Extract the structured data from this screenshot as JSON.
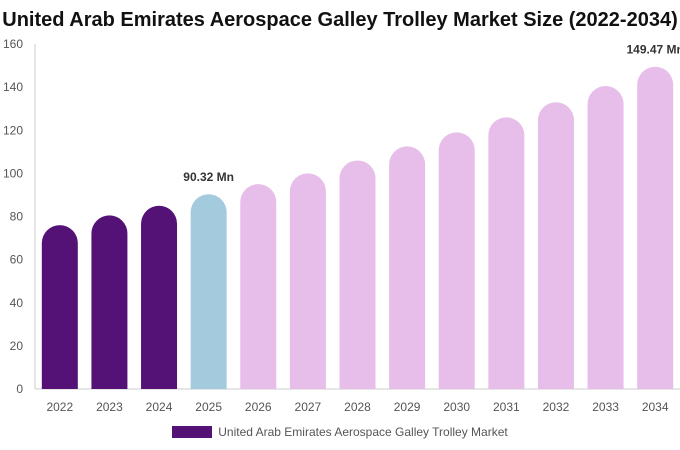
{
  "chart_data": {
    "type": "bar",
    "title": "United Arab Emirates Aerospace Galley Trolley Market Size (2022-2034)",
    "xlabel": "",
    "ylabel": "",
    "categories": [
      "2022",
      "2023",
      "2024",
      "2025",
      "2026",
      "2027",
      "2028",
      "2029",
      "2030",
      "2031",
      "2032",
      "2033",
      "2034"
    ],
    "series": [
      {
        "name": "United Arab Emirates Aerospace Galley Trolley Market",
        "values": [
          76,
          80.5,
          85,
          90.32,
          95,
          100,
          106,
          112.5,
          119,
          126,
          133,
          140.5,
          149.47
        ]
      }
    ],
    "data_labels": [
      {
        "index": 3,
        "text": "90.32 Mn"
      },
      {
        "index": 12,
        "text": "149.47 Mn"
      }
    ],
    "ylim": [
      0,
      160
    ],
    "yticks": [
      0,
      20,
      40,
      60,
      80,
      100,
      120,
      140,
      160
    ],
    "grid": false,
    "legend_position": "bottom",
    "colors": {
      "historical": "#541276",
      "current": "#a4cade",
      "forecast": "#e7bde9",
      "axis": "#cccccc",
      "tick_text": "#555555",
      "label_text": "#333333"
    },
    "bar_color_keys": [
      "historical",
      "historical",
      "historical",
      "current",
      "forecast",
      "forecast",
      "forecast",
      "forecast",
      "forecast",
      "forecast",
      "forecast",
      "forecast",
      "forecast"
    ]
  }
}
